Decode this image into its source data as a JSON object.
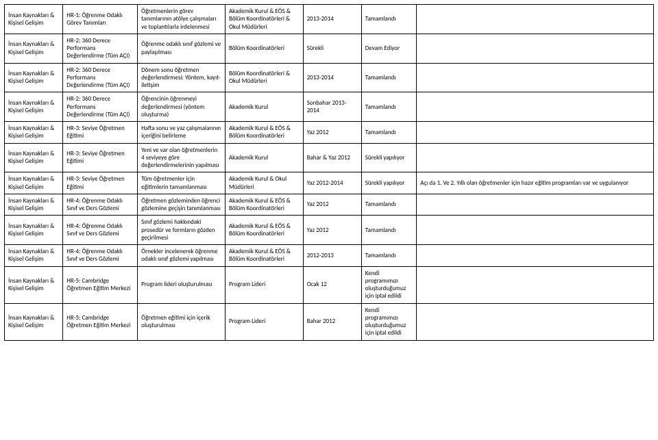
{
  "rows": [
    {
      "c1": "İnsan Kaynakları & Kişisel Gelişim",
      "c2": "HR-1: Öğrenme Odaklı Görev Tanımları",
      "c3": "Öğretmenlerin görev tanımlarının atölye çalışmaları ve toplantılarla irdelenmesi",
      "c4": "Akademik Kurul & EÖS & Bölüm Koordinatörleri & Okul Müdürleri",
      "c5": "2013-2014",
      "c6": "Tamamlandı",
      "c7": ""
    },
    {
      "c1": "İnsan Kaynakları & Kişisel Gelişim",
      "c2": "HR-2: 360 Derece Performans Değerlendirme (Tüm AÇI)",
      "c3": "Öğrenme odaklı sınıf gözlemi ve paylaşılması",
      "c4": "Bölüm Koordinatörleri",
      "c5": "Sürekli",
      "c6": "Devam Ediyor",
      "c7": ""
    },
    {
      "c1": "İnsan Kaynakları & Kişisel Gelişim",
      "c2": "HR-2: 360 Derece Performans Değerlendirme (Tüm AÇI)",
      "c3": "Dönem sonu öğretmen değerlendirmesi: Yöntem, kayıt-iletişim",
      "c4": "Bölüm Koordinatörleri & Okul Müdürleri",
      "c5": "2013-2014",
      "c6": "Tamamlandı",
      "c7": ""
    },
    {
      "c1": "İnsan Kaynakları & Kişisel Gelişim",
      "c2": "HR-2: 360 Derece Performans Değerlendirme (Tüm AÇI)",
      "c3": "Öğrencinin öğrenmeyi değerlendirmesi (yöntem oluşturma)",
      "c4": "Akademik Kurul",
      "c5": "Sonbahar 2013-2014",
      "c6": "Tamamlandı",
      "c7": ""
    },
    {
      "c1": "İnsan Kaynakları & Kişisel Gelişim",
      "c2": "HR-3: Seviye Öğretmen Eğitimi",
      "c3": "Hafta sonu ve yaz çalışmalarının içeriğini belirleme",
      "c4": "Akademik Kurul & EÖS & Bölüm Koordinatörleri",
      "c5": "Yaz 2012",
      "c6": "Tamamlandı",
      "c7": ""
    },
    {
      "c1": "İnsan Kaynakları & Kişisel Gelişim",
      "c2": "HR-3: Seviye Öğretmen Eğitimi",
      "c3": "Yeni ve var olan öğretmenlerin 4 seviyeye göre değerlendirmelerinin yapılması",
      "c4": "Akademik Kurul",
      "c5": "Bahar & Yaz 2012",
      "c6": "Sürekli yapılıyor",
      "c7": ""
    },
    {
      "c1": "İnsan Kaynakları & Kişisel Gelişim",
      "c2": "HR-3: Seviye Öğretmen Eğitimi",
      "c3": "Tüm öğretmenler için eğitimlerin tamamlanması",
      "c4": "Akademik Kurul & Okul Müdürleri",
      "c5": "Yaz 2012-2014",
      "c6": "Sürekli yapılıyor",
      "c7": "Açı da 1. Ve 2. Yıllı olan öğretmenler için hazır eğitim programları var ve uygulanıyor"
    },
    {
      "c1": "İnsan Kaynakları & Kişisel Gelişim",
      "c2": "HR-4: Öğrenme Odaklı Sınıf ve Ders Gözlemi",
      "c3": "Öğretmen gözleminden öğrenci gözlemine geçişin tanımlanması",
      "c4": "Akademik Kurul & EÖS & Bölüm Koordinatörleri",
      "c5": "Yaz 2012",
      "c6": "Tamamlandı",
      "c7": ""
    },
    {
      "c1": "İnsan Kaynakları & Kişisel Gelişim",
      "c2": "HR-4: Öğrenme Odaklı Sınıf ve Ders Gözlemi",
      "c3": "Sınıf gözlemi hakkındaki prosedür ve formların gözden geçirilmesi",
      "c4": "Akademik Kurul & EÖS & Bölüm Koordinatörleri",
      "c5": "Yaz 2012",
      "c6": "Tamamlandı",
      "c7": ""
    },
    {
      "c1": "İnsan Kaynakları & Kişisel Gelişim",
      "c2": "HR-4: Öğrenme Odaklı Sınıf ve Ders Gözlemi",
      "c3": "Örnekler incelenerek öğrenme odaklı sınıf gözlemi yapılması",
      "c4": "Akademik Kurul & EÖS & Bölüm Koordinatörleri",
      "c5": "2012-2013",
      "c6": "Tamamlandı",
      "c7": ""
    },
    {
      "c1": "İnsan Kaynakları & Kişisel Gelişim",
      "c2": "HR-5: Cambridge Öğretmen Eğitim Merkezi",
      "c3": "Program lideri oluşturulması",
      "c4": "Program Lideri",
      "c5": "Ocak 12",
      "c6": "Kendi programımızı oluşturduğumuz için iptal edildi",
      "c7": ""
    },
    {
      "c1": "İnsan Kaynakları & Kişisel Gelişim",
      "c2": "HR-5: Cambridge Öğretmen Eğitim Merkezi",
      "c3": "Öğretmen eğitimi için içerik oluşturulması",
      "c4": "Program Lideri",
      "c5": "Bahar 2012",
      "c6": "Kendi programımızı oluşturduğumuz için iptal edildi",
      "c7": ""
    }
  ]
}
